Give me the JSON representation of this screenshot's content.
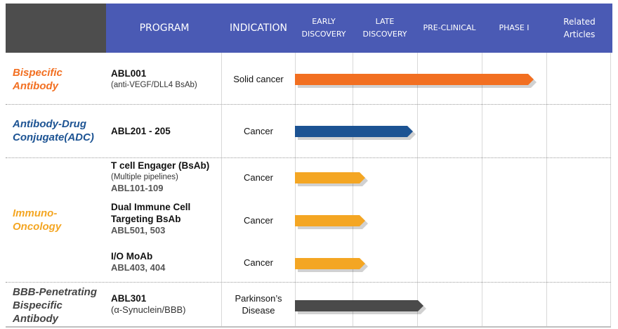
{
  "header": {
    "program": "PROGRAM",
    "indication": "INDICATION",
    "stages": [
      {
        "line1": "EARLY",
        "line2": "DISCOVERY"
      },
      {
        "line1": "LATE",
        "line2": "DISCOVERY"
      },
      {
        "line1": "PRE-CLINICAL",
        "line2": ""
      },
      {
        "line1": "PHASE I",
        "line2": ""
      }
    ],
    "related": {
      "line1": "Related",
      "line2": "Articles"
    }
  },
  "categories": {
    "bispecific": {
      "line1": "Bispecific",
      "line2": "Antibody",
      "color": "#f26f21"
    },
    "adc": {
      "line1": "Antibody-Drug",
      "line2": "Conjugate(ADC)",
      "color": "#1c5393"
    },
    "immuno": {
      "line1": "Immuno-",
      "line2": "Oncology",
      "color": "#f4a623"
    },
    "bbb": {
      "line1": "BBB-Penetrating",
      "line2": "Bispecific",
      "line3": "Antibody",
      "color": "#444444"
    }
  },
  "programs": {
    "abl001": {
      "name": "ABL001",
      "sub": "(anti-VEGF/DLL4 BsAb)",
      "indication": "Solid cancer",
      "stage_progress": 0.95,
      "color": "#f26f21"
    },
    "abl201": {
      "name": "ABL201 - 205",
      "indication": "Cancer",
      "stage_progress": 0.47,
      "color": "#1c5393"
    },
    "tcell": {
      "name": "T cell Engager (BsAb)",
      "sub": "(Multiple pipelines)",
      "code": "ABL101-109",
      "indication": "Cancer",
      "stage_progress": 0.28,
      "color": "#f4a623"
    },
    "dual": {
      "name1": "Dual Immune Cell",
      "name2": "Targeting BsAb",
      "code": "ABL501, 503",
      "indication": "Cancer",
      "stage_progress": 0.28,
      "color": "#f4a623"
    },
    "io": {
      "name": "I/O MoAb",
      "code": "ABL403, 404",
      "indication": "Cancer",
      "stage_progress": 0.28,
      "color": "#f4a623"
    },
    "abl301": {
      "name": "ABL301",
      "sub": "(α-Synuclein/BBB)",
      "indication1": "Parkinson’s",
      "indication2": "Disease",
      "stage_progress": 0.51,
      "color": "#4a4a4a"
    }
  }
}
